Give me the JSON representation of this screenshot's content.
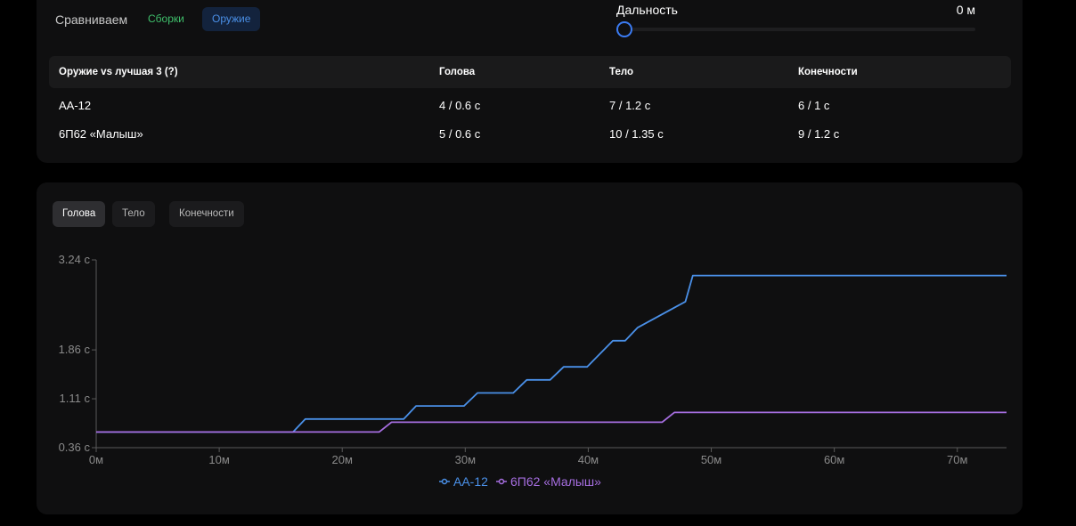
{
  "controls": {
    "compare_label": "Сравниваем",
    "builds_label": "Сборки",
    "weapons_label": "Оружие",
    "range_label": "Дальность",
    "range_value": "0 м"
  },
  "table": {
    "headers": [
      "Оружие vs лучшая 3 (?)",
      "Голова",
      "Тело",
      "Конечности"
    ],
    "rows": [
      [
        "АА-12",
        "4 / 0.6 с",
        "7 / 1.2 с",
        "6 / 1 с"
      ],
      [
        "6П62 «Малыш»",
        "5 / 0.6 с",
        "10 / 1.35 с",
        "9 / 1.2 с"
      ]
    ]
  },
  "tabs": [
    "Голова",
    "Тело",
    "Конечности"
  ],
  "colors": {
    "series1": "#4a90e8",
    "series2": "#a66ee0",
    "builds": "#3fbf6b",
    "weapons": "#4a8fe6"
  },
  "chart_data": {
    "type": "line",
    "xlabel": "",
    "ylabel": "",
    "xlim": [
      0,
      74
    ],
    "ylim": [
      0.36,
      3.24
    ],
    "x_ticks": [
      0,
      10,
      20,
      30,
      40,
      50,
      60,
      70
    ],
    "x_tick_labels": [
      "0м",
      "10м",
      "20м",
      "30м",
      "40м",
      "50м",
      "60м",
      "70м"
    ],
    "y_ticks": [
      0.36,
      1.11,
      1.86,
      3.24
    ],
    "y_tick_labels": [
      "0.36 с",
      "1.11 с",
      "1.86 с",
      "3.24 с"
    ],
    "legend_position": "bottom",
    "series": [
      {
        "name": "АА-12",
        "points": [
          [
            0,
            0.6
          ],
          [
            16,
            0.6
          ],
          [
            17,
            0.8
          ],
          [
            25,
            0.8
          ],
          [
            26,
            1.0
          ],
          [
            29.9,
            1.0
          ],
          [
            31,
            1.2
          ],
          [
            33.9,
            1.2
          ],
          [
            35,
            1.4
          ],
          [
            36.9,
            1.4
          ],
          [
            38,
            1.6
          ],
          [
            39.9,
            1.6
          ],
          [
            42,
            2.0
          ],
          [
            43,
            2.0
          ],
          [
            44,
            2.2
          ],
          [
            47.9,
            2.6
          ],
          [
            48.5,
            3.0
          ],
          [
            74,
            3.0
          ]
        ]
      },
      {
        "name": "6П62 «Малыш»",
        "points": [
          [
            0,
            0.6
          ],
          [
            23,
            0.6
          ],
          [
            24,
            0.75
          ],
          [
            46,
            0.75
          ],
          [
            47,
            0.9
          ],
          [
            74,
            0.9
          ]
        ]
      }
    ]
  }
}
